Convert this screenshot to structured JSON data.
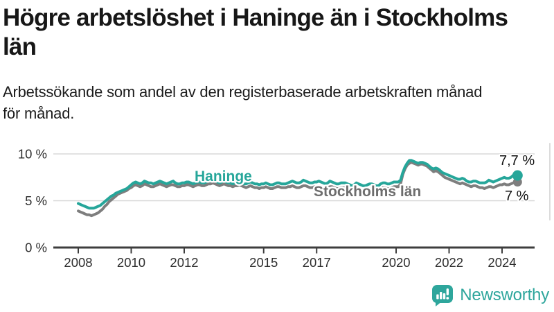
{
  "header": {
    "title_line1": "Högre arbetslöshet i Haninge än i Stockholms",
    "title_line2": "län",
    "subtitle_line1": "Arbetssökande som andel av den registerbaserade arbetskraften månad",
    "subtitle_line2": "för månad."
  },
  "footer": {
    "brand": "Newsworthy",
    "logo_icon": "newsworthy-speech-bubble-bar-chart-icon"
  },
  "colors": {
    "haninge": "#26a69a",
    "stockholm": "#7e7e7e",
    "stockholm_label": "#6d6d6d",
    "grid": "#d8d8d8",
    "axis": "#3d3d3d",
    "tick_text": "#2e2e2e",
    "value_text": "#111111",
    "logo_teal": "#2ea69c"
  },
  "chart_data": {
    "type": "line",
    "title": "Högre arbetslöshet i Haninge än i Stockholms län",
    "subtitle": "Arbetssökande som andel av den registerbaserade arbetskraften månad för månad.",
    "x_frequency": "monthly",
    "x_range": [
      "2008-01",
      "2024-08"
    ],
    "x_tick_years": [
      2008,
      2010,
      2012,
      2015,
      2017,
      2020,
      2022,
      2024
    ],
    "x_tick_labels": [
      "2008",
      "2010",
      "2012",
      "2015",
      "2017",
      "2020",
      "2022",
      "2024"
    ],
    "y_ticks": [
      10,
      5,
      0
    ],
    "y_tick_labels": [
      "10 %",
      "5 %",
      "0 %"
    ],
    "ylim": [
      0,
      12.3
    ],
    "grid": "horizontal",
    "legend_position": "inline-labels",
    "series": [
      {
        "name": "Haninge",
        "color": "#26a69a",
        "end_label": "7,7 %",
        "end_value": 7.7,
        "values": [
          4.7,
          4.6,
          4.5,
          4.4,
          4.3,
          4.2,
          4.2,
          4.2,
          4.3,
          4.4,
          4.5,
          4.7,
          4.9,
          5.1,
          5.3,
          5.5,
          5.6,
          5.8,
          5.9,
          6.0,
          6.1,
          6.2,
          6.3,
          6.5,
          6.7,
          6.9,
          7.0,
          6.9,
          6.8,
          6.9,
          7.1,
          7.0,
          6.9,
          6.9,
          6.8,
          6.9,
          7.0,
          7.1,
          7.0,
          6.9,
          6.8,
          6.9,
          7.0,
          7.1,
          6.9,
          6.8,
          6.8,
          6.9,
          6.9,
          7.0,
          7.0,
          6.9,
          6.8,
          6.9,
          7.0,
          7.0,
          6.9,
          6.9,
          7.0,
          7.1,
          7.1,
          7.2,
          7.1,
          7.0,
          6.9,
          7.0,
          7.1,
          7.0,
          6.9,
          6.9,
          6.8,
          6.9,
          7.0,
          7.0,
          6.9,
          6.8,
          6.8,
          6.9,
          7.0,
          6.9,
          6.8,
          6.8,
          6.7,
          6.8,
          6.8,
          6.9,
          6.8,
          6.7,
          6.7,
          6.8,
          6.9,
          6.9,
          6.8,
          6.8,
          6.8,
          6.9,
          7.0,
          7.1,
          7.0,
          6.9,
          6.9,
          7.0,
          7.2,
          7.1,
          7.0,
          6.9,
          6.9,
          7.0,
          7.0,
          7.1,
          7.0,
          6.9,
          6.8,
          6.9,
          7.1,
          7.0,
          6.9,
          6.8,
          6.8,
          6.9,
          6.9,
          6.9,
          6.8,
          6.7,
          6.6,
          6.7,
          6.9,
          6.8,
          6.7,
          6.6,
          6.6,
          6.7,
          6.8,
          6.8,
          6.7,
          6.6,
          6.6,
          6.8,
          6.9,
          6.9,
          6.8,
          6.8,
          6.9,
          7.0,
          7.0,
          7.0,
          7.2,
          8.0,
          8.6,
          9.0,
          9.3,
          9.3,
          9.2,
          9.1,
          9.0,
          9.1,
          9.1,
          9.0,
          8.9,
          8.7,
          8.5,
          8.4,
          8.5,
          8.4,
          8.2,
          8.0,
          7.9,
          7.8,
          7.7,
          7.6,
          7.5,
          7.4,
          7.3,
          7.3,
          7.4,
          7.3,
          7.1,
          7.0,
          7.0,
          7.1,
          7.1,
          7.0,
          6.9,
          6.9,
          6.9,
          7.0,
          7.2,
          7.1,
          7.0,
          7.1,
          7.2,
          7.3,
          7.4,
          7.5,
          7.4,
          7.4,
          7.5,
          7.7,
          7.8,
          7.7
        ]
      },
      {
        "name": "Stockholms län",
        "color": "#7e7e7e",
        "end_label": "7 %",
        "end_value": 7.0,
        "values": [
          3.9,
          3.8,
          3.7,
          3.6,
          3.5,
          3.5,
          3.4,
          3.5,
          3.6,
          3.7,
          3.9,
          4.1,
          4.4,
          4.6,
          4.9,
          5.1,
          5.3,
          5.5,
          5.7,
          5.8,
          5.9,
          6.0,
          6.1,
          6.3,
          6.4,
          6.6,
          6.7,
          6.6,
          6.5,
          6.6,
          6.8,
          6.7,
          6.6,
          6.5,
          6.5,
          6.6,
          6.7,
          6.8,
          6.7,
          6.6,
          6.5,
          6.6,
          6.7,
          6.7,
          6.6,
          6.5,
          6.5,
          6.6,
          6.6,
          6.7,
          6.7,
          6.6,
          6.5,
          6.6,
          6.7,
          6.7,
          6.6,
          6.6,
          6.7,
          6.8,
          6.8,
          6.9,
          6.8,
          6.7,
          6.6,
          6.7,
          6.8,
          6.7,
          6.6,
          6.6,
          6.5,
          6.6,
          6.6,
          6.7,
          6.6,
          6.5,
          6.4,
          6.5,
          6.6,
          6.5,
          6.4,
          6.4,
          6.3,
          6.4,
          6.4,
          6.5,
          6.4,
          6.3,
          6.3,
          6.4,
          6.5,
          6.5,
          6.4,
          6.4,
          6.4,
          6.5,
          6.5,
          6.6,
          6.5,
          6.4,
          6.4,
          6.5,
          6.6,
          6.6,
          6.5,
          6.4,
          6.4,
          6.5,
          6.5,
          6.5,
          6.4,
          6.3,
          6.3,
          6.4,
          6.5,
          6.5,
          6.4,
          6.3,
          6.3,
          6.4,
          6.4,
          6.4,
          6.3,
          6.2,
          6.1,
          6.2,
          6.3,
          6.3,
          6.2,
          6.1,
          6.1,
          6.2,
          6.2,
          6.3,
          6.2,
          6.1,
          6.1,
          6.2,
          6.4,
          6.4,
          6.3,
          6.3,
          6.4,
          6.5,
          6.5,
          6.5,
          6.8,
          7.8,
          8.4,
          8.8,
          9.0,
          9.1,
          9.0,
          8.9,
          8.8,
          8.9,
          8.9,
          8.8,
          8.7,
          8.5,
          8.3,
          8.1,
          8.2,
          8.1,
          7.9,
          7.7,
          7.5,
          7.4,
          7.3,
          7.2,
          7.1,
          7.0,
          6.9,
          6.8,
          6.9,
          6.8,
          6.7,
          6.6,
          6.5,
          6.6,
          6.6,
          6.5,
          6.4,
          6.4,
          6.3,
          6.4,
          6.5,
          6.5,
          6.4,
          6.5,
          6.6,
          6.7,
          6.7,
          6.8,
          6.7,
          6.7,
          6.8,
          6.9,
          7.0,
          7.0
        ]
      }
    ]
  }
}
